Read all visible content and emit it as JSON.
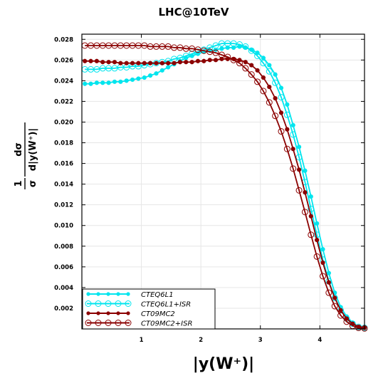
{
  "chart_data": {
    "type": "line",
    "title": "LHC@10TeV",
    "xlabel": "|y(W⁺)|",
    "ylabel": {
      "numerator": "1",
      "denominator": "σ",
      "fraction_num": "dσ",
      "fraction_den": "d|y(W⁺)|"
    },
    "xlim": [
      0,
      4.75
    ],
    "ylim": [
      0,
      0.0285
    ],
    "xticks": [
      1,
      2,
      3,
      4
    ],
    "yticks": [
      0.002,
      0.004,
      0.006,
      0.008,
      0.01,
      0.012,
      0.014,
      0.016,
      0.018,
      0.02,
      0.022,
      0.024,
      0.026,
      0.028
    ],
    "ytick_labels": [
      "0.002",
      "0.004",
      "0.006",
      "0.008",
      "0.010",
      "0.012",
      "0.014",
      "0.016",
      "0.018",
      "0.020",
      "0.022",
      "0.024",
      "0.026",
      "0.028"
    ],
    "grid": true,
    "legend_position": "bottom-left",
    "series": [
      {
        "name": "CTEQ6L1",
        "color": "#00e5ee",
        "marker": "filled",
        "x": [
          0.05,
          0.15,
          0.25,
          0.35,
          0.45,
          0.55,
          0.65,
          0.75,
          0.85,
          0.95,
          1.05,
          1.15,
          1.25,
          1.35,
          1.45,
          1.55,
          1.65,
          1.75,
          1.85,
          1.95,
          2.05,
          2.15,
          2.25,
          2.35,
          2.45,
          2.55,
          2.65,
          2.75,
          2.85,
          2.95,
          3.05,
          3.15,
          3.25,
          3.35,
          3.45,
          3.55,
          3.65,
          3.75,
          3.85,
          3.95,
          4.05,
          4.15,
          4.25,
          4.35,
          4.45,
          4.55,
          4.65,
          4.75
        ],
        "y": [
          0.0237,
          0.0237,
          0.0238,
          0.0238,
          0.0238,
          0.0239,
          0.0239,
          0.024,
          0.0241,
          0.0242,
          0.0243,
          0.0245,
          0.0247,
          0.025,
          0.0253,
          0.0256,
          0.0259,
          0.0262,
          0.0264,
          0.0266,
          0.0268,
          0.0269,
          0.027,
          0.0271,
          0.0272,
          0.0272,
          0.0273,
          0.0272,
          0.027,
          0.0267,
          0.0262,
          0.0255,
          0.0246,
          0.0233,
          0.0217,
          0.0197,
          0.0176,
          0.0153,
          0.0128,
          0.0102,
          0.0077,
          0.0054,
          0.0035,
          0.0021,
          0.0012,
          0.0006,
          0.0002,
          0.0001
        ]
      },
      {
        "name": "CTEQ6L1+ISR",
        "color": "#00e5ee",
        "marker": "open",
        "x": [
          0.05,
          0.15,
          0.25,
          0.35,
          0.45,
          0.55,
          0.65,
          0.75,
          0.85,
          0.95,
          1.05,
          1.15,
          1.25,
          1.35,
          1.45,
          1.55,
          1.65,
          1.75,
          1.85,
          1.95,
          2.05,
          2.15,
          2.25,
          2.35,
          2.45,
          2.55,
          2.65,
          2.75,
          2.85,
          2.95,
          3.05,
          3.15,
          3.25,
          3.35,
          3.45,
          3.55,
          3.65,
          3.75,
          3.85,
          3.95,
          4.05,
          4.15,
          4.25,
          4.35,
          4.45,
          4.55,
          4.65,
          4.75
        ],
        "y": [
          0.0251,
          0.0251,
          0.0251,
          0.0252,
          0.0252,
          0.0252,
          0.0253,
          0.0253,
          0.0254,
          0.0254,
          0.0255,
          0.0256,
          0.0257,
          0.0258,
          0.0259,
          0.0261,
          0.0262,
          0.0264,
          0.0266,
          0.0268,
          0.027,
          0.0272,
          0.0274,
          0.0276,
          0.0276,
          0.0276,
          0.0275,
          0.0273,
          0.0269,
          0.0264,
          0.0257,
          0.0249,
          0.0238,
          0.0224,
          0.0207,
          0.0188,
          0.0166,
          0.0142,
          0.0116,
          0.0091,
          0.0067,
          0.0046,
          0.003,
          0.0018,
          0.001,
          0.0005,
          0.0002,
          0.0001
        ]
      },
      {
        "name": "CT09MC2",
        "color": "#8b0000",
        "marker": "filled",
        "x": [
          0.05,
          0.15,
          0.25,
          0.35,
          0.45,
          0.55,
          0.65,
          0.75,
          0.85,
          0.95,
          1.05,
          1.15,
          1.25,
          1.35,
          1.45,
          1.55,
          1.65,
          1.75,
          1.85,
          1.95,
          2.05,
          2.15,
          2.25,
          2.35,
          2.45,
          2.55,
          2.65,
          2.75,
          2.85,
          2.95,
          3.05,
          3.15,
          3.25,
          3.35,
          3.45,
          3.55,
          3.65,
          3.75,
          3.85,
          3.95,
          4.05,
          4.15,
          4.25,
          4.35,
          4.45,
          4.55,
          4.65,
          4.75
        ],
        "y": [
          0.0259,
          0.0259,
          0.0259,
          0.0258,
          0.0258,
          0.0258,
          0.0257,
          0.0257,
          0.0257,
          0.0257,
          0.0257,
          0.0257,
          0.0257,
          0.0257,
          0.0257,
          0.0257,
          0.0258,
          0.0258,
          0.0258,
          0.0259,
          0.0259,
          0.026,
          0.026,
          0.0261,
          0.0261,
          0.0261,
          0.026,
          0.0258,
          0.0255,
          0.025,
          0.0243,
          0.0234,
          0.0223,
          0.0209,
          0.0193,
          0.0174,
          0.0154,
          0.0132,
          0.0109,
          0.0086,
          0.0064,
          0.0045,
          0.003,
          0.0018,
          0.001,
          0.0005,
          0.0002,
          0.0001
        ]
      },
      {
        "name": "CT09MC2+ISR",
        "color": "#8b0000",
        "marker": "open",
        "x": [
          0.05,
          0.15,
          0.25,
          0.35,
          0.45,
          0.55,
          0.65,
          0.75,
          0.85,
          0.95,
          1.05,
          1.15,
          1.25,
          1.35,
          1.45,
          1.55,
          1.65,
          1.75,
          1.85,
          1.95,
          2.05,
          2.15,
          2.25,
          2.35,
          2.45,
          2.55,
          2.65,
          2.75,
          2.85,
          2.95,
          3.05,
          3.15,
          3.25,
          3.35,
          3.45,
          3.55,
          3.65,
          3.75,
          3.85,
          3.95,
          4.05,
          4.15,
          4.25,
          4.35,
          4.45,
          4.55,
          4.65,
          4.75
        ],
        "y": [
          0.0274,
          0.0274,
          0.0274,
          0.0274,
          0.0274,
          0.0274,
          0.0274,
          0.0274,
          0.0274,
          0.0274,
          0.0274,
          0.0273,
          0.0273,
          0.0273,
          0.0273,
          0.0272,
          0.0272,
          0.0271,
          0.0271,
          0.027,
          0.0269,
          0.0268,
          0.0267,
          0.0265,
          0.0263,
          0.026,
          0.0257,
          0.0252,
          0.0246,
          0.0239,
          0.023,
          0.0219,
          0.0206,
          0.0191,
          0.0174,
          0.0155,
          0.0134,
          0.0113,
          0.0091,
          0.007,
          0.0051,
          0.0035,
          0.0022,
          0.0013,
          0.0007,
          0.0003,
          0.0001,
          5e-05
        ]
      }
    ]
  }
}
